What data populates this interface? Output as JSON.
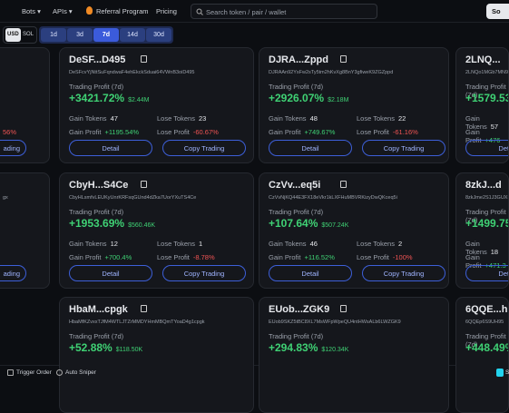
{
  "nav": {
    "items": [
      "Bots",
      "APIs",
      "Referral Program",
      "Pricing"
    ],
    "search_placeholder": "Search token / pair / wallet",
    "right_button": "So"
  },
  "filters": {
    "currency": [
      "USD",
      "SOL"
    ],
    "timeframes": [
      "1d",
      "3d",
      "7d",
      "14d",
      "30d"
    ],
    "active_timeframe": "7d"
  },
  "labels": {
    "trading_profit": "Trading Profit (7d)",
    "gain_tokens": "Gain Tokens",
    "lose_tokens": "Lose Tokens",
    "gain_profit": "Gain Profit",
    "lose_profit": "Lose Profit",
    "detail": "Detail",
    "copy": "Copy Trading"
  },
  "cards": [
    {
      "title": "DeSF...D495",
      "address": "DeSFcvYjNttSuFqndwaF4ehEkckSduai64VWnB3oiD495",
      "profit": "+3421.72%",
      "usd": "$2.44M",
      "gain_tokens": "47",
      "lose_tokens": "23",
      "gain_profit": "+1195.54%",
      "lose_profit": "-60.67%"
    },
    {
      "title": "DJRA...Zppd",
      "address": "DJRAAn92YsFw2sTy5tm2hKvXg8BnY3gfiweK9ZGZppd",
      "profit": "+2926.07%",
      "usd": "$2.18M",
      "gain_tokens": "48",
      "lose_tokens": "22",
      "gain_profit": "+749.67%",
      "lose_profit": "-61.16%"
    },
    {
      "title": "CbyH...S4Ce",
      "address": "CbyHLsmfvLEUKyUnrKRFsqGUnd4dZka7UorYXuTS4Ce",
      "profit": "+1953.69%",
      "usd": "$560.46K",
      "gain_tokens": "12",
      "lose_tokens": "1",
      "gain_profit": "+700.4%",
      "lose_profit": "-8.78%"
    },
    {
      "title": "CzVv...eq5i",
      "address": "CzVvNjKQ44E3FX18eVkr1kLXFHuMBVRKizyDwQKceq5i",
      "profit": "+107.64%",
      "usd": "$507.24K",
      "gain_tokens": "46",
      "lose_tokens": "2",
      "gain_profit": "+116.52%",
      "lose_profit": "-100%"
    },
    {
      "title": "HbaM...cpgk",
      "address": "HbaMfKZvxxTJfM4WTLJTZrMMDYHmMBQmTYoaD4g1cpgk",
      "profit": "+52.88%",
      "usd": "$118.50K"
    },
    {
      "title": "EUob...ZGK9",
      "address": "EUob9SKZ5tBC8XL7MsWFpWpeQU4ntHWsALb6LWZGK9",
      "profit": "+294.83%",
      "usd": "$120.34K"
    }
  ],
  "right_cards": [
    {
      "title": "2LNQ...",
      "address": "2LNQo1MGb7MN95",
      "profit": "+1579.53%",
      "gain_tokens": "57",
      "gain_profit": "+476"
    },
    {
      "title": "8zkJ...d",
      "address": "8zkJme2S1J3GUXF",
      "profit": "+1499.75%",
      "gain_tokens": "18",
      "gain_profit": "+471.3"
    },
    {
      "title": "6QQE...h",
      "address": "6QQEp6S9UH95",
      "profit": "+448.49%"
    }
  ],
  "left_fragments": [
    {
      "text": "56%",
      "button": "ading"
    },
    {
      "text": "gx",
      "button": "ading"
    }
  ],
  "footer": {
    "items": [
      "Trigger Order",
      "Auto Sniper"
    ],
    "right": "S"
  }
}
